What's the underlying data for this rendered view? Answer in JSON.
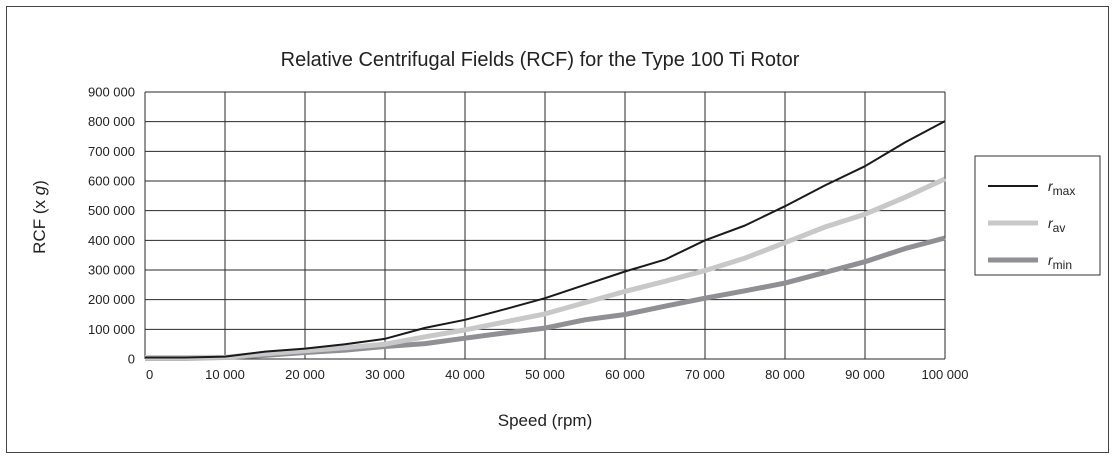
{
  "chart_data": {
    "type": "line",
    "title": "Relative Centrifugal Fields (RCF) for the Type 100 Ti Rotor",
    "xlabel": "Speed (rpm)",
    "ylabel": "RCF (x g)",
    "ylabel_parts": {
      "prefix": "RCF (x ",
      "var": "g",
      "suffix": ")"
    },
    "xlim": [
      0,
      100000
    ],
    "ylim": [
      0,
      900000
    ],
    "x_ticks": [
      "0",
      "10 000",
      "20 000",
      "30 000",
      "40 000",
      "50 000",
      "60 000",
      "70 000",
      "80 000",
      "90 000",
      "100 000"
    ],
    "y_ticks": [
      "0",
      "100 000",
      "200 000",
      "300 000",
      "400 000",
      "500 000",
      "600 000",
      "700 000",
      "800 000",
      "900 000"
    ],
    "grid": true,
    "legend_position": "right",
    "x": [
      0,
      5000,
      10000,
      15000,
      20000,
      25000,
      30000,
      35000,
      40000,
      45000,
      50000,
      55000,
      60000,
      65000,
      70000,
      75000,
      80000,
      85000,
      90000,
      95000,
      100000
    ],
    "series": [
      {
        "name": "r max",
        "label_var": "r",
        "label_sub": "max",
        "color": "#1a1a1a",
        "width": 2,
        "values": [
          5000,
          5000,
          8000,
          25000,
          35000,
          50000,
          68000,
          105000,
          132000,
          168000,
          205000,
          250000,
          295000,
          335000,
          400000,
          450000,
          515000,
          585000,
          650000,
          730000,
          802000
        ]
      },
      {
        "name": "r av",
        "label_var": "r",
        "label_sub": "av",
        "color": "#c8c8c8",
        "width": 5,
        "values": [
          5000,
          5000,
          6000,
          18000,
          28000,
          38000,
          50000,
          75000,
          98000,
          125000,
          152000,
          190000,
          228000,
          262000,
          298000,
          340000,
          392000,
          445000,
          488000,
          545000,
          607000
        ]
      },
      {
        "name": "r min",
        "label_var": "r",
        "label_sub": "min",
        "color": "#8f8f94",
        "width": 5,
        "values": [
          3000,
          3000,
          5000,
          12000,
          22000,
          30000,
          42000,
          52000,
          70000,
          88000,
          104000,
          132000,
          150000,
          178000,
          205000,
          230000,
          256000,
          292000,
          328000,
          372000,
          408000
        ]
      }
    ]
  }
}
